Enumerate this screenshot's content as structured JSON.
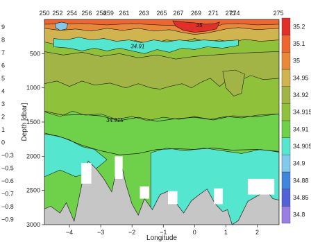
{
  "chart_data": {
    "type": "heatmap",
    "title": "",
    "xlabel": "Longitude",
    "ylabel": "Depth [dbar]",
    "xlim": [
      -4.8,
      2.7
    ],
    "ylim": [
      3000,
      0
    ],
    "x_ticks": [
      -4,
      -3,
      -2,
      -1,
      0,
      1,
      2
    ],
    "y_ticks": [
      500,
      1000,
      1500,
      2000,
      2500,
      3000
    ],
    "stations": {
      "labels": [
        "250",
        "252",
        "254",
        "256",
        "258",
        "259",
        "261",
        "263",
        "265",
        "267",
        "269",
        "271",
        "273",
        "274",
        "275"
      ],
      "longitudes": [
        -4.8,
        -4.38,
        -3.92,
        -3.45,
        -2.98,
        -2.75,
        -2.25,
        -1.62,
        -1.05,
        -0.52,
        0.05,
        0.6,
        1.15,
        1.28,
        2.68
      ]
    },
    "colorbar": {
      "levels": [
        "34.8",
        "34.85",
        "34.88",
        "34.9",
        "34.905",
        "34.91",
        "34.915",
        "34.92",
        "34.95",
        "35",
        "35.1",
        "35.2"
      ],
      "colors": [
        "#9a7fe3",
        "#5062d6",
        "#3f86dc",
        "#84c9ec",
        "#55e6cf",
        "#6fd04a",
        "#8fc23a",
        "#a3b446",
        "#cfb44f",
        "#e8893a",
        "#ee6530",
        "#e0302a"
      ]
    },
    "contour_labels": [
      {
        "text": "34.91",
        "x": -1.82,
        "depth": 420
      },
      {
        "text": "34.915",
        "x": -2.55,
        "depth": 1500
      },
      {
        "text": "35",
        "x": 0.15,
        "depth": 110
      }
    ],
    "left_edge_values": [
      "9",
      "8",
      "7",
      "6",
      "5",
      "4",
      "3",
      "2",
      "1",
      "0",
      "−0.3",
      "−0.5",
      "−0.6",
      "−0.7",
      "−0.8",
      "−0.9"
    ],
    "bathymetry": {
      "x": [
        -4.8,
        -4.6,
        -4.3,
        -4.1,
        -3.85,
        -3.6,
        -3.4,
        -3.15,
        -2.9,
        -2.65,
        -2.4,
        -2.2,
        -2.0,
        -1.8,
        -1.6,
        -1.35,
        -1.1,
        -0.85,
        -0.6,
        -0.35,
        -0.1,
        0.15,
        0.4,
        0.65,
        0.9,
        1.05,
        1.2,
        1.4,
        1.7,
        2.0,
        2.3,
        2.5,
        2.7
      ],
      "depth": [
        2770,
        2730,
        2830,
        2680,
        2950,
        2400,
        2070,
        2180,
        2330,
        2520,
        2000,
        2400,
        2700,
        2860,
        2620,
        2780,
        2560,
        2510,
        2680,
        2830,
        2650,
        2560,
        2480,
        2690,
        2810,
        2780,
        3000,
        2940,
        2660,
        2580,
        2500,
        2620,
        2640
      ]
    }
  }
}
